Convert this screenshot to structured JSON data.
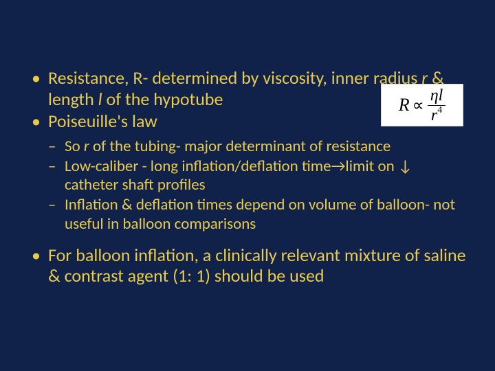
{
  "colors": {
    "background": "#102249",
    "text": "#e8ca4c",
    "formula_bg": "#ffffff",
    "formula_text": "#000000"
  },
  "b1_1_a": "Resistance, R- determined by viscosity, inner radius ",
  "b1_1_r": "r",
  "b1_1_b": " & length ",
  "b1_1_l": "l",
  "b1_1_c": " of the hypotube",
  "b1_2": "Poiseuille's law",
  "b2_1_a": "So ",
  "b2_1_r": "r",
  "b2_1_b": " of the tubing- major determinant of resistance",
  "b2_2": "Low-caliber - long inflation/deflation time→limit on ↓ catheter shaft profiles",
  "b2_3": "Inflation & deflation times depend on volume of balloon- not useful in balloon comparisons",
  "b1_3": "For balloon inflation, a clinically relevant mixture of saline & contrast agent (1: 1) should be used",
  "formula": {
    "lhs": "R",
    "prop": "∝",
    "num_eta": "η",
    "num_l": "l",
    "den_r": "r",
    "den_exp": "4"
  }
}
